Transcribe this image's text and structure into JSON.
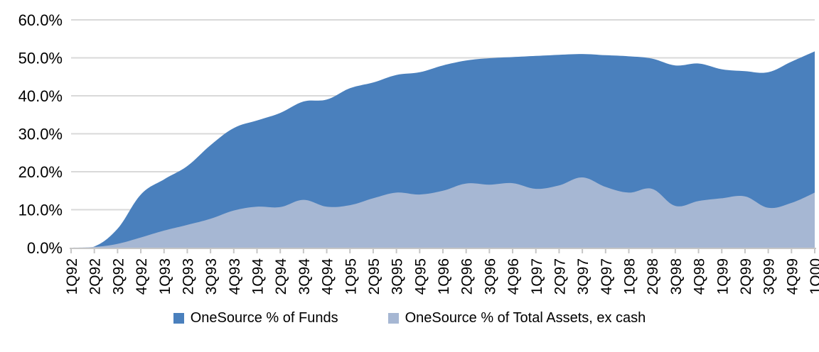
{
  "chart_data": {
    "type": "area",
    "title": "",
    "categories": [
      "1Q92",
      "2Q92",
      "3Q92",
      "4Q92",
      "1Q93",
      "2Q93",
      "3Q93",
      "4Q93",
      "1Q94",
      "2Q94",
      "3Q94",
      "4Q94",
      "1Q95",
      "2Q95",
      "3Q95",
      "4Q95",
      "1Q96",
      "2Q96",
      "3Q96",
      "4Q96",
      "1Q97",
      "2Q97",
      "3Q97",
      "4Q97",
      "1Q98",
      "2Q98",
      "3Q98",
      "4Q98",
      "1Q99",
      "2Q99",
      "3Q99",
      "4Q99",
      "1Q00"
    ],
    "series": [
      {
        "name": "OneSource % of Funds",
        "color": "#4a80bd",
        "values": [
          0,
          0.3,
          5,
          14,
          18,
          21.5,
          27,
          31.5,
          33.5,
          35.5,
          38.5,
          39,
          42,
          43.5,
          45.5,
          46.2,
          48,
          49.3,
          49.9,
          50.2,
          50.5,
          50.8,
          51,
          50.7,
          50.4,
          49.8,
          48,
          48.5,
          47,
          46.5,
          46.2,
          49,
          51.7
        ]
      },
      {
        "name": "OneSource % of Total Assets, ex cash",
        "color": "#a6b7d3",
        "values": [
          0,
          0.2,
          1,
          2.7,
          4.5,
          6,
          7.6,
          9.8,
          10.8,
          10.7,
          12.6,
          10.8,
          11.2,
          13,
          14.5,
          14,
          15,
          16.9,
          16.6,
          17,
          15.5,
          16.4,
          18.5,
          16,
          14.5,
          15.5,
          11,
          12.3,
          13,
          13.5,
          10.5,
          11.8,
          14.5
        ]
      }
    ],
    "ylim": [
      0,
      60
    ],
    "ytick_step": 10,
    "ytick_labels": [
      "0.0%",
      "10.0%",
      "20.0%",
      "30.0%",
      "40.0%",
      "50.0%",
      "60.0%"
    ],
    "xlabel": "",
    "ylabel": "",
    "grid": "horizontal",
    "legend_position": "bottom"
  },
  "colors": {
    "grid": "#d9d9d9",
    "axis": "#c6c6c6",
    "text": "#000000",
    "background": "#ffffff"
  }
}
